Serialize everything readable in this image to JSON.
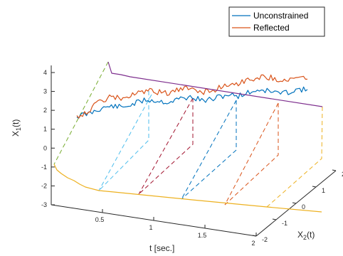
{
  "chart_data": {
    "type": "line",
    "title": "",
    "xlabel": "t [sec.]",
    "ylabel_main": "X",
    "ylabel_sub": "1",
    "ylabel_tail": "(t)",
    "zlabel_main": "X",
    "zlabel_sub": "2",
    "zlabel_tail": "(t)",
    "grid": false,
    "legend_position": "top-right",
    "t_ticks": [
      "0.5",
      "1",
      "1.5",
      "2"
    ],
    "x1_ticks": [
      "-3",
      "-2",
      "-1",
      "0",
      "1",
      "2",
      "3",
      "4"
    ],
    "x2_ticks": [
      "-2",
      "-1",
      "0",
      "1",
      "2"
    ],
    "series": [
      {
        "name": "Unconstrained",
        "color": "#0072BD",
        "t": [
          0.0,
          0.1,
          0.2,
          0.3,
          0.4,
          0.5,
          0.6,
          0.7,
          0.8,
          0.9,
          1.0,
          1.1,
          1.2,
          1.3,
          1.4,
          1.5,
          1.6,
          1.7,
          1.8,
          1.9,
          2.0
        ],
        "x1": [
          1.8,
          2.0,
          2.4,
          2.6,
          2.5,
          2.8,
          3.1,
          3.0,
          2.9,
          3.2,
          3.3,
          3.0,
          3.2,
          3.5,
          3.4,
          3.7,
          3.9,
          3.7,
          3.6,
          3.9,
          3.9
        ]
      },
      {
        "name": "Reflected",
        "color": "#D95319",
        "t": [
          0.0,
          0.1,
          0.2,
          0.3,
          0.4,
          0.5,
          0.6,
          0.7,
          0.8,
          0.9,
          1.0,
          1.1,
          1.2,
          1.3,
          1.4,
          1.5,
          1.6,
          1.7,
          1.8,
          1.9,
          2.0
        ],
        "x1": [
          1.8,
          2.2,
          3.0,
          3.3,
          3.2,
          3.5,
          3.8,
          3.7,
          3.6,
          3.9,
          4.0,
          3.7,
          3.9,
          4.3,
          4.4,
          4.7,
          4.9,
          4.8,
          4.6,
          4.8,
          4.7
        ]
      },
      {
        "name": "",
        "color": "#7E2F8E",
        "t": [
          0.0,
          0.5,
          1.0,
          1.5,
          2.0
        ],
        "x1": [
          4.0,
          3.8,
          3.6,
          3.4,
          3.2
        ]
      },
      {
        "name": "",
        "color": "#EDB120",
        "t": [
          0.0,
          0.5,
          1.0,
          1.5,
          2.0
        ],
        "x1": [
          -0.9,
          -2.1,
          -2.2,
          -2.2,
          -2.3
        ]
      }
    ]
  }
}
